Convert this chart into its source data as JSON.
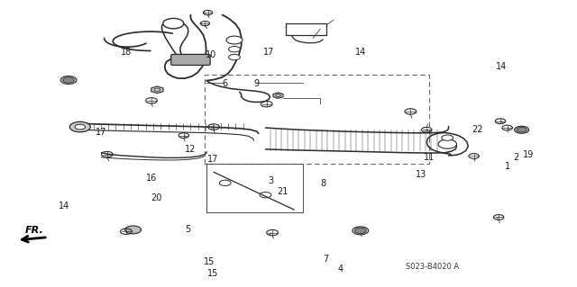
{
  "background_color": "#ffffff",
  "line_color": "#2a2a2a",
  "text_color": "#1a1a1a",
  "font_size": 7.0,
  "fig_width": 6.4,
  "fig_height": 3.19,
  "dpi": 100,
  "diagram_code": "S023-B4020 A",
  "fr_label": "FR.",
  "labels": {
    "15a": [
      0.368,
      0.045,
      "15"
    ],
    "15b": [
      0.363,
      0.085,
      "15"
    ],
    "4": [
      0.59,
      0.06,
      "4"
    ],
    "7": [
      0.565,
      0.095,
      "7"
    ],
    "5": [
      0.325,
      0.2,
      "5"
    ],
    "20": [
      0.27,
      0.31,
      "20"
    ],
    "16": [
      0.262,
      0.38,
      "16"
    ],
    "14a": [
      0.11,
      0.28,
      "14"
    ],
    "21": [
      0.49,
      0.33,
      "21"
    ],
    "3": [
      0.47,
      0.37,
      "3"
    ],
    "8": [
      0.56,
      0.36,
      "8"
    ],
    "17a": [
      0.368,
      0.445,
      "17"
    ],
    "12": [
      0.33,
      0.48,
      "12"
    ],
    "17b": [
      0.175,
      0.54,
      "17"
    ],
    "13": [
      0.73,
      0.39,
      "13"
    ],
    "1": [
      0.88,
      0.42,
      "1"
    ],
    "2": [
      0.895,
      0.45,
      "2"
    ],
    "19": [
      0.916,
      0.46,
      "19"
    ],
    "11": [
      0.745,
      0.45,
      "11"
    ],
    "22": [
      0.828,
      0.55,
      "22"
    ],
    "6": [
      0.39,
      0.71,
      "6"
    ],
    "9": [
      0.445,
      0.71,
      "9"
    ],
    "10": [
      0.365,
      0.81,
      "10"
    ],
    "17c": [
      0.465,
      0.82,
      "17"
    ],
    "18": [
      0.218,
      0.82,
      "18"
    ],
    "14b": [
      0.625,
      0.82,
      "14"
    ],
    "14c": [
      0.87,
      0.77,
      "14"
    ]
  }
}
